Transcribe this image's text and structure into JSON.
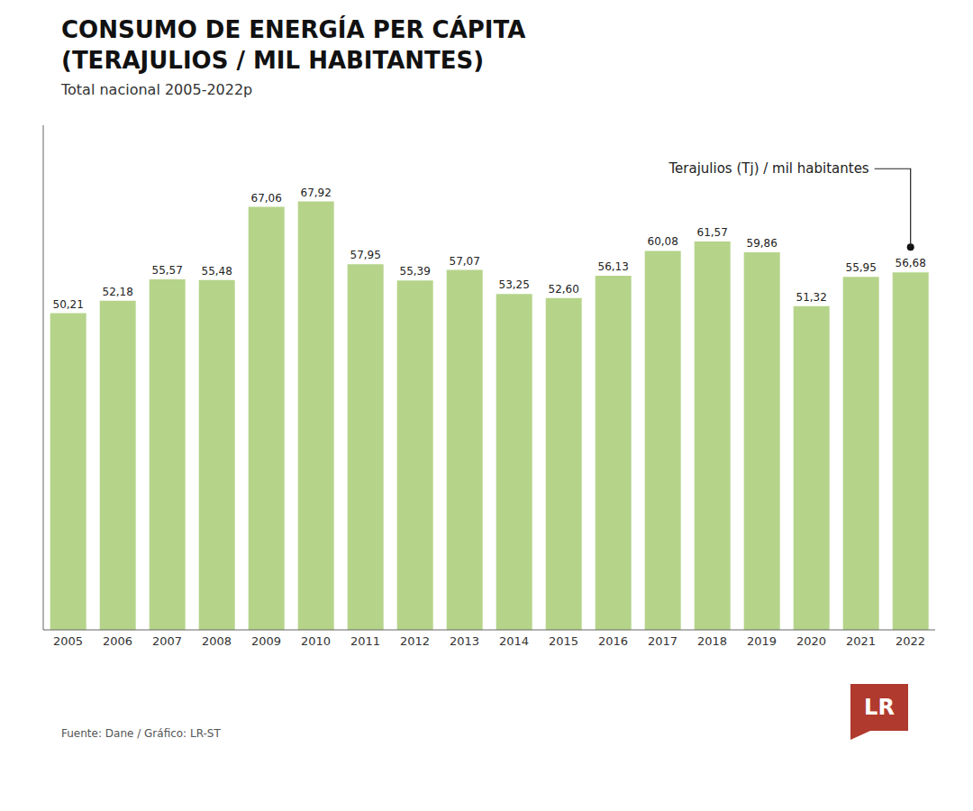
{
  "chart_data": {
    "type": "bar",
    "title": "CONSUMO DE ENERGÍA PER CÁPITA\n(TERAJULIOS / MIL HABITANTES)",
    "subtitle": "Total nacional 2005-2022p",
    "categories": [
      "2005",
      "2006",
      "2007",
      "2008",
      "2009",
      "2010",
      "2011",
      "2012",
      "2013",
      "2014",
      "2015",
      "2016",
      "2017",
      "2018",
      "2019",
      "2020",
      "2021",
      "2022"
    ],
    "values": [
      50.21,
      52.18,
      55.57,
      55.48,
      67.06,
      67.92,
      57.95,
      55.39,
      57.07,
      53.25,
      52.6,
      56.13,
      60.08,
      61.57,
      59.86,
      51.32,
      55.95,
      56.68
    ],
    "value_labels": [
      "50,21",
      "52,18",
      "55,57",
      "55,48",
      "67,06",
      "67,92",
      "57,95",
      "55,39",
      "57,07",
      "53,25",
      "52,60",
      "56,13",
      "60,08",
      "61,57",
      "59,86",
      "51,32",
      "55,95",
      "56,68"
    ],
    "data_labels": true,
    "color": "#b5d48a",
    "ylim": [
      0,
      80
    ],
    "grid": false,
    "tick_labels": "x",
    "annotations": [
      {
        "text": "Terajulios (Tj) / mil habitantes"
      },
      {
        "text": "Fuente: Dane / Gráfico: LR-ST"
      },
      {
        "text": "LR",
        "color": "#b03a2e"
      }
    ]
  }
}
